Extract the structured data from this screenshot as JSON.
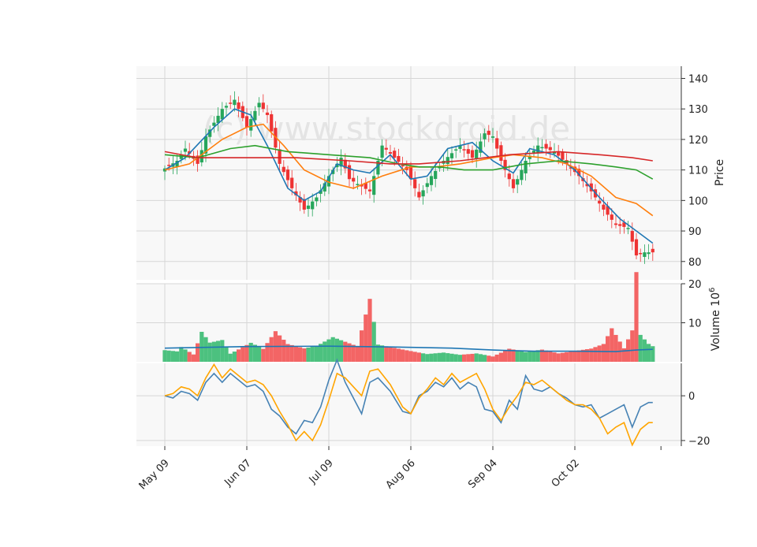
{
  "chart_data": {
    "type": "candlestick",
    "watermark": "(c) www.stockdroid.de",
    "x_tick_labels": [
      "May 09",
      "Jun 07",
      "Jul 09",
      "Aug 06",
      "Sep 04",
      "Oct 02"
    ],
    "x_tick_index": [
      0,
      20,
      40,
      60,
      80,
      100
    ],
    "colors": {
      "up": "#26a65b",
      "down": "#ee3333",
      "up_fill": "#4cc17f",
      "down_fill": "#f36565",
      "panel_bg": "#f8f8f8",
      "grid": "#d6d6d6"
    },
    "price_panel": {
      "ylabel": "Price",
      "ylim": [
        74,
        144
      ],
      "yticks": [
        80,
        90,
        100,
        110,
        120,
        130,
        140
      ],
      "anchors": [
        [
          0,
          110.5
        ],
        [
          3,
          113
        ],
        [
          5,
          117
        ],
        [
          8,
          112
        ],
        [
          10,
          121
        ],
        [
          14,
          130
        ],
        [
          17,
          133
        ],
        [
          20,
          124
        ],
        [
          23,
          132
        ],
        [
          25,
          128
        ],
        [
          28,
          112
        ],
        [
          31,
          104
        ],
        [
          34,
          97
        ],
        [
          37,
          101
        ],
        [
          40,
          108
        ],
        [
          43,
          114
        ],
        [
          45,
          107
        ],
        [
          50,
          103
        ],
        [
          53,
          118
        ],
        [
          56,
          114
        ],
        [
          59,
          110
        ],
        [
          62,
          101
        ],
        [
          65,
          108
        ],
        [
          68,
          113
        ],
        [
          72,
          118
        ],
        [
          75,
          114
        ],
        [
          78,
          122
        ],
        [
          80,
          121
        ],
        [
          82,
          113
        ],
        [
          85,
          104
        ],
        [
          88,
          113
        ],
        [
          91,
          118
        ],
        [
          95,
          116
        ],
        [
          98,
          112
        ],
        [
          101,
          108
        ],
        [
          104,
          103
        ],
        [
          107,
          97
        ],
        [
          110,
          92
        ],
        [
          113,
          91
        ],
        [
          115,
          82
        ],
        [
          117,
          83
        ],
        [
          119,
          83
        ]
      ],
      "series_ma": [
        {
          "color": "#1f77b4",
          "points": [
            [
              0,
              110
            ],
            [
              5,
              114
            ],
            [
              12,
              124
            ],
            [
              17,
              130
            ],
            [
              21,
              128
            ],
            [
              25,
              118
            ],
            [
              30,
              104
            ],
            [
              34,
              100
            ],
            [
              38,
              103
            ],
            [
              42,
              112
            ],
            [
              46,
              110
            ],
            [
              50,
              109
            ],
            [
              55,
              115
            ],
            [
              60,
              107
            ],
            [
              64,
              108
            ],
            [
              69,
              117
            ],
            [
              75,
              119
            ],
            [
              80,
              113
            ],
            [
              85,
              109
            ],
            [
              89,
              117
            ],
            [
              95,
              115
            ],
            [
              100,
              110
            ],
            [
              106,
              101
            ],
            [
              111,
              94
            ],
            [
              116,
              89
            ],
            [
              119,
              86
            ]
          ]
        },
        {
          "color": "#ff7f0e",
          "points": [
            [
              0,
              110
            ],
            [
              6,
              112
            ],
            [
              14,
              120
            ],
            [
              20,
              124
            ],
            [
              24,
              125
            ],
            [
              29,
              118
            ],
            [
              34,
              110
            ],
            [
              40,
              106
            ],
            [
              46,
              104
            ],
            [
              53,
              108
            ],
            [
              60,
              111
            ],
            [
              66,
              111
            ],
            [
              72,
              112
            ],
            [
              80,
              114
            ],
            [
              85,
              115
            ],
            [
              92,
              114
            ],
            [
              98,
              112
            ],
            [
              104,
              108
            ],
            [
              110,
              101
            ],
            [
              115,
              99
            ],
            [
              119,
              95
            ]
          ]
        },
        {
          "color": "#2ca02c",
          "points": [
            [
              0,
              115
            ],
            [
              8,
              114
            ],
            [
              16,
              117
            ],
            [
              22,
              118
            ],
            [
              30,
              116
            ],
            [
              40,
              115
            ],
            [
              50,
              114
            ],
            [
              57,
              112
            ],
            [
              62,
              111
            ],
            [
              67,
              111
            ],
            [
              73,
              110
            ],
            [
              80,
              110
            ],
            [
              88,
              112
            ],
            [
              96,
              113
            ],
            [
              104,
              112
            ],
            [
              110,
              111
            ],
            [
              115,
              110
            ],
            [
              119,
              107
            ]
          ]
        },
        {
          "color": "#d62728",
          "points": [
            [
              0,
              116
            ],
            [
              8,
              114
            ],
            [
              20,
              114
            ],
            [
              32,
              114
            ],
            [
              45,
              113
            ],
            [
              55,
              112
            ],
            [
              62,
              112
            ],
            [
              72,
              113
            ],
            [
              84,
              115
            ],
            [
              96,
              116
            ],
            [
              106,
              115
            ],
            [
              114,
              114
            ],
            [
              119,
              113
            ]
          ]
        }
      ]
    },
    "volume_panel": {
      "ylabel": "Volume  10^6",
      "ylim": [
        0,
        20
      ],
      "yticks": [
        10,
        20
      ],
      "anchors": [
        [
          0,
          3.5
        ],
        [
          3,
          3.0
        ],
        [
          4,
          4.2
        ],
        [
          7,
          2.0
        ],
        [
          9,
          8.0
        ],
        [
          11,
          5.0
        ],
        [
          14,
          5.5
        ],
        [
          16,
          2.0
        ],
        [
          18,
          3.0
        ],
        [
          21,
          4.5
        ],
        [
          24,
          3.0
        ],
        [
          27,
          7.0
        ],
        [
          30,
          4.0
        ],
        [
          34,
          3.0
        ],
        [
          37,
          3.5
        ],
        [
          41,
          5.5
        ],
        [
          44,
          4.5
        ],
        [
          47,
          3.5
        ],
        [
          50,
          14.5
        ],
        [
          52,
          4.0
        ],
        [
          55,
          3.5
        ],
        [
          58,
          3.0
        ],
        [
          61,
          2.5
        ],
        [
          64,
          2.0
        ],
        [
          68,
          2.5
        ],
        [
          72,
          2.0
        ],
        [
          76,
          2.5
        ],
        [
          80,
          1.5
        ],
        [
          84,
          3.5
        ],
        [
          88,
          2.5
        ],
        [
          92,
          3.0
        ],
        [
          96,
          2.0
        ],
        [
          100,
          2.5
        ],
        [
          104,
          3.0
        ],
        [
          107,
          4.0
        ],
        [
          109,
          7.5
        ],
        [
          112,
          3.0
        ],
        [
          114,
          7.0
        ],
        [
          115,
          20.0
        ],
        [
          116,
          6.0
        ],
        [
          118,
          4.0
        ],
        [
          119,
          3.5
        ]
      ],
      "ma": {
        "color": "#1f77b4",
        "points": [
          [
            0,
            3.5
          ],
          [
            20,
            3.9
          ],
          [
            40,
            4.0
          ],
          [
            55,
            3.8
          ],
          [
            70,
            3.5
          ],
          [
            80,
            3.0
          ],
          [
            90,
            2.7
          ],
          [
            100,
            2.7
          ],
          [
            110,
            2.6
          ],
          [
            115,
            3.0
          ],
          [
            119,
            3.2
          ]
        ]
      }
    },
    "indicator_panel": {
      "ylim": [
        -22.5,
        14.5
      ],
      "yticks": [
        0,
        -20
      ],
      "series": [
        {
          "color": "#4682b4",
          "points": [
            [
              0,
              0
            ],
            [
              2,
              -1
            ],
            [
              4,
              2
            ],
            [
              6,
              1
            ],
            [
              8,
              -2
            ],
            [
              10,
              6
            ],
            [
              12,
              10
            ],
            [
              14,
              6
            ],
            [
              16,
              10
            ],
            [
              18,
              7
            ],
            [
              20,
              4
            ],
            [
              22,
              5
            ],
            [
              24,
              2
            ],
            [
              26,
              -6
            ],
            [
              28,
              -9
            ],
            [
              30,
              -14
            ],
            [
              32,
              -17
            ],
            [
              34,
              -11
            ],
            [
              36,
              -12
            ],
            [
              38,
              -5
            ],
            [
              40,
              7
            ],
            [
              42,
              16
            ],
            [
              44,
              6
            ],
            [
              46,
              -1
            ],
            [
              48,
              -8
            ],
            [
              50,
              6
            ],
            [
              52,
              8
            ],
            [
              55,
              2
            ],
            [
              58,
              -7
            ],
            [
              60,
              -8
            ],
            [
              62,
              0
            ],
            [
              64,
              2
            ],
            [
              66,
              6
            ],
            [
              68,
              4
            ],
            [
              70,
              8
            ],
            [
              72,
              3
            ],
            [
              74,
              6
            ],
            [
              76,
              4
            ],
            [
              78,
              -6
            ],
            [
              80,
              -7
            ],
            [
              82,
              -12
            ],
            [
              84,
              -2
            ],
            [
              86,
              -6
            ],
            [
              88,
              9
            ],
            [
              90,
              3
            ],
            [
              92,
              2
            ],
            [
              94,
              4
            ],
            [
              96,
              1
            ],
            [
              98,
              -1
            ],
            [
              100,
              -4
            ],
            [
              102,
              -5
            ],
            [
              104,
              -4
            ],
            [
              106,
              -10
            ],
            [
              108,
              -8
            ],
            [
              110,
              -6
            ],
            [
              112,
              -4
            ],
            [
              114,
              -14
            ],
            [
              116,
              -5
            ],
            [
              118,
              -3
            ],
            [
              119,
              -3
            ]
          ]
        },
        {
          "color": "#ffa500",
          "points": [
            [
              0,
              0
            ],
            [
              2,
              1
            ],
            [
              4,
              4
            ],
            [
              6,
              3
            ],
            [
              8,
              0
            ],
            [
              10,
              8
            ],
            [
              12,
              14
            ],
            [
              14,
              8
            ],
            [
              16,
              12
            ],
            [
              18,
              9
            ],
            [
              20,
              6
            ],
            [
              22,
              7
            ],
            [
              24,
              5
            ],
            [
              26,
              0
            ],
            [
              28,
              -7
            ],
            [
              30,
              -13
            ],
            [
              32,
              -20
            ],
            [
              34,
              -16
            ],
            [
              36,
              -20
            ],
            [
              38,
              -13
            ],
            [
              40,
              -2
            ],
            [
              42,
              10
            ],
            [
              44,
              8
            ],
            [
              46,
              4
            ],
            [
              48,
              0
            ],
            [
              50,
              11
            ],
            [
              52,
              12
            ],
            [
              55,
              5
            ],
            [
              58,
              -5
            ],
            [
              60,
              -8
            ],
            [
              62,
              -1
            ],
            [
              64,
              3
            ],
            [
              66,
              8
            ],
            [
              68,
              5
            ],
            [
              70,
              10
            ],
            [
              72,
              6
            ],
            [
              74,
              8
            ],
            [
              76,
              10
            ],
            [
              78,
              3
            ],
            [
              80,
              -6
            ],
            [
              82,
              -11
            ],
            [
              84,
              -5
            ],
            [
              86,
              0
            ],
            [
              88,
              6
            ],
            [
              90,
              5
            ],
            [
              92,
              7
            ],
            [
              94,
              4
            ],
            [
              96,
              1
            ],
            [
              98,
              -2
            ],
            [
              100,
              -4
            ],
            [
              102,
              -4
            ],
            [
              104,
              -6
            ],
            [
              106,
              -10
            ],
            [
              108,
              -17
            ],
            [
              110,
              -14
            ],
            [
              112,
              -12
            ],
            [
              114,
              -22
            ],
            [
              116,
              -15
            ],
            [
              118,
              -12
            ],
            [
              119,
              -12
            ]
          ]
        }
      ]
    },
    "n": 120
  }
}
